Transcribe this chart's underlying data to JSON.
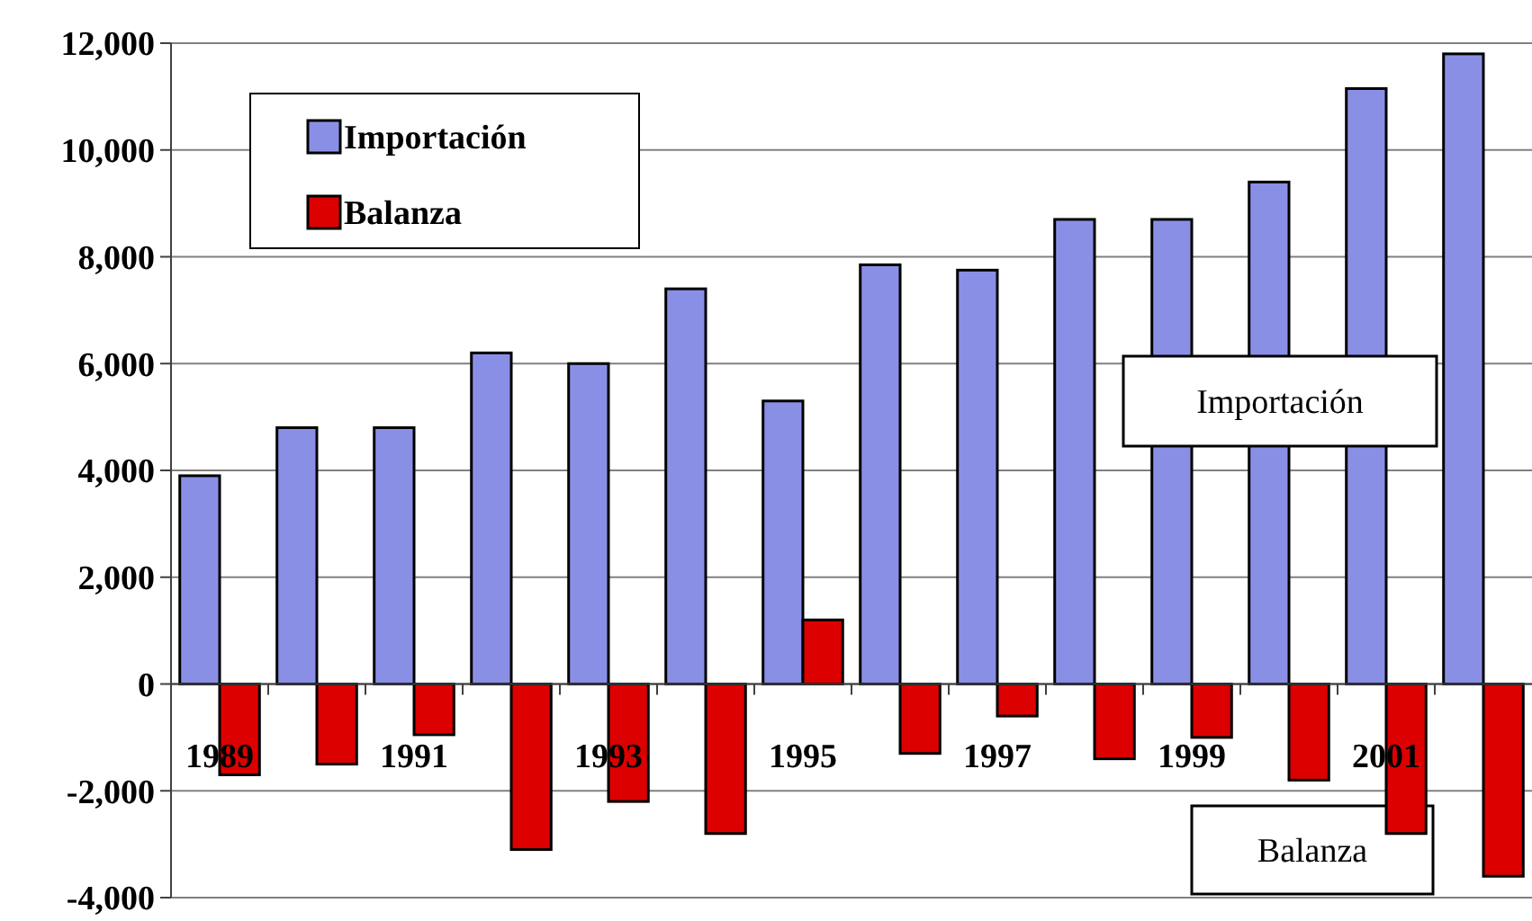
{
  "chart_data": {
    "type": "bar",
    "categories": [
      "1989",
      null,
      "1991",
      null,
      "1993",
      null,
      "1995",
      null,
      "1997",
      null,
      "1999",
      null,
      "2001",
      null
    ],
    "series": [
      {
        "name": "Importación",
        "color": "#8a8fe6",
        "values": [
          3900,
          4800,
          4800,
          6200,
          6000,
          7400,
          5300,
          7850,
          7750,
          8700,
          8700,
          9400,
          11150,
          11800
        ]
      },
      {
        "name": "Balanza",
        "color": "#dd0000",
        "values": [
          -1700,
          -1500,
          -950,
          -3100,
          -2200,
          -2800,
          1200,
          -1300,
          -600,
          -1400,
          -1000,
          -1800,
          -2800,
          -3600
        ]
      }
    ],
    "ylim": [
      -4000,
      12000
    ],
    "yticks": [
      {
        "value": -4000,
        "label": "-4,000"
      },
      {
        "value": -2000,
        "label": "-2,000"
      },
      0,
      {
        "value": 2000,
        "label": "2,000"
      },
      {
        "value": 4000,
        "label": "4,000"
      },
      {
        "value": 6000,
        "label": "6,000"
      },
      {
        "value": 8000,
        "label": "8,000"
      },
      {
        "value": 10000,
        "label": "10,000"
      },
      {
        "value": 12000,
        "label": "12,000"
      }
    ],
    "grid": "y",
    "legend": "top left",
    "annotations": [
      "Importación",
      "Balanza"
    ]
  }
}
